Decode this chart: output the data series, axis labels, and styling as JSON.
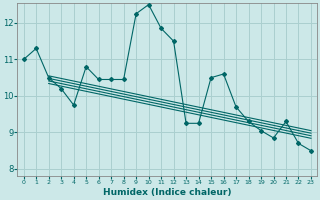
{
  "xlabel": "Humidex (Indice chaleur)",
  "ylabel": "",
  "background_color": "#cce8e8",
  "grid_color": "#aacfcf",
  "line_color": "#006666",
  "xlim": [
    -0.5,
    23.5
  ],
  "ylim": [
    7.8,
    12.55
  ],
  "yticks": [
    8,
    9,
    10,
    11,
    12
  ],
  "xticks": [
    0,
    1,
    2,
    3,
    4,
    5,
    6,
    7,
    8,
    9,
    10,
    11,
    12,
    13,
    14,
    15,
    16,
    17,
    18,
    19,
    20,
    21,
    22,
    23
  ],
  "main_x": [
    0,
    1,
    2,
    3,
    4,
    5,
    6,
    7,
    8,
    9,
    10,
    11,
    12,
    13,
    14,
    15,
    16,
    17,
    18,
    19,
    20,
    21,
    22,
    23
  ],
  "main_y": [
    11.0,
    11.3,
    10.5,
    10.2,
    9.75,
    10.8,
    10.45,
    10.45,
    10.45,
    12.25,
    12.5,
    11.85,
    11.5,
    9.25,
    9.25,
    10.5,
    10.6,
    9.7,
    9.3,
    9.05,
    8.85,
    9.3,
    8.7,
    8.5
  ],
  "reg_lines": [
    {
      "x0": 2.0,
      "y0": 10.55,
      "x1": 23.0,
      "y1": 9.05
    },
    {
      "x0": 2.0,
      "y0": 10.48,
      "x1": 23.0,
      "y1": 8.98
    },
    {
      "x0": 2.0,
      "y0": 10.41,
      "x1": 23.0,
      "y1": 8.91
    },
    {
      "x0": 2.0,
      "y0": 10.34,
      "x1": 23.0,
      "y1": 8.84
    }
  ]
}
